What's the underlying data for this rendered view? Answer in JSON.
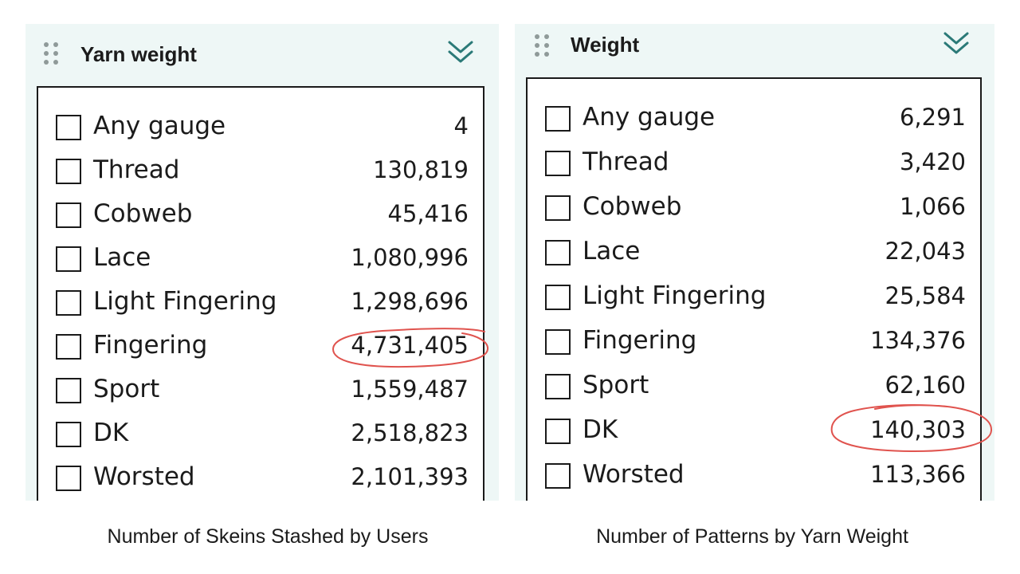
{
  "panels": [
    {
      "title": "Yarn weight",
      "caption": "Number of Skeins Stashed by Users",
      "rows": [
        {
          "label": "Any gauge",
          "count": "4"
        },
        {
          "label": "Thread",
          "count": "130,819"
        },
        {
          "label": "Cobweb",
          "count": "45,416"
        },
        {
          "label": "Lace",
          "count": "1,080,996"
        },
        {
          "label": "Light Fingering",
          "count": "1,298,696"
        },
        {
          "label": "Fingering",
          "count": "4,731,405",
          "circled": true
        },
        {
          "label": "Sport",
          "count": "1,559,487"
        },
        {
          "label": "DK",
          "count": "2,518,823"
        },
        {
          "label": "Worsted",
          "count": "2,101,393"
        }
      ]
    },
    {
      "title": "Weight",
      "caption": "Number of Patterns by Yarn Weight",
      "rows": [
        {
          "label": "Any gauge",
          "count": "6,291"
        },
        {
          "label": "Thread",
          "count": "3,420"
        },
        {
          "label": "Cobweb",
          "count": "1,066"
        },
        {
          "label": "Lace",
          "count": "22,043"
        },
        {
          "label": "Light Fingering",
          "count": "25,584"
        },
        {
          "label": "Fingering",
          "count": "134,376"
        },
        {
          "label": "Sport",
          "count": "62,160"
        },
        {
          "label": "DK",
          "count": "140,303",
          "circled": true
        },
        {
          "label": "Worsted",
          "count": "113,366"
        }
      ]
    }
  ],
  "icons": {
    "drag_handle": "drag-handle-icon",
    "collapse": "double-chevron-down-icon"
  },
  "colors": {
    "panel_background": "#eef7f6",
    "accent": "#2b7a78",
    "annotation": "#e0534e"
  }
}
